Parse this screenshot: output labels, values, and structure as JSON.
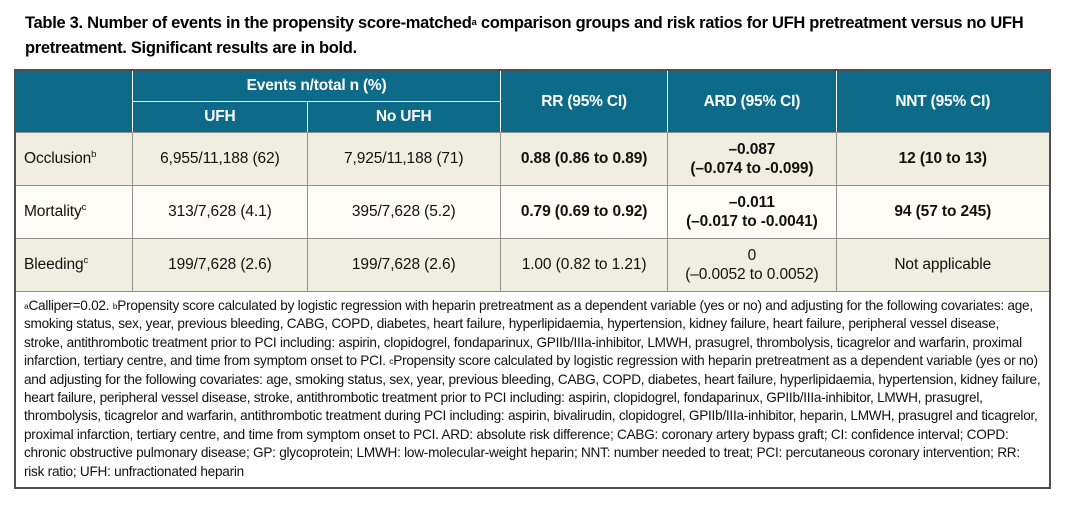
{
  "colors": {
    "header_bg": "#0e6a89",
    "header_text": "#ffffff",
    "row_beige": "#efeee0",
    "row_white": "#fdfcf6",
    "grid_line": "#8f8f8f",
    "outer_border": "#4f4f4f"
  },
  "title": {
    "part1": "Table 3. Number of events in the propensity score-matched",
    "sup": "a",
    "part2": " comparison groups and risk ratios for UFH pretreatment versus no UFH pretreatment. Significant results are in bold."
  },
  "table": {
    "header": {
      "events_group": "Events n/total n (%)",
      "ufh": "UFH",
      "no_ufh": "No UFH",
      "rr": "RR (95% CI)",
      "ard": "ARD (95% CI)",
      "nnt": "NNT (95% CI)"
    },
    "rows": [
      {
        "label": "Occlusion",
        "label_sup": "b",
        "ufh": "6,955/11,188 (62)",
        "no_ufh": "7,925/11,188 (71)",
        "rr": "0.88 (0.86 to 0.89)",
        "ard_line1": "–0.087",
        "ard_line2": "(–0.074 to -0.099)",
        "nnt": "12 (10 to 13)",
        "significant": true
      },
      {
        "label": "Mortality",
        "label_sup": "c",
        "ufh": "313/7,628 (4.1)",
        "no_ufh": "395/7,628 (5.2)",
        "rr": "0.79 (0.69 to 0.92)",
        "ard_line1": "–0.011",
        "ard_line2": "(–0.017 to -0.0041)",
        "nnt": "94 (57 to 245)",
        "significant": true
      },
      {
        "label": "Bleeding",
        "label_sup": "c",
        "ufh": "199/7,628 (2.6)",
        "no_ufh": "199/7,628 (2.6)",
        "rr": "1.00 (0.82 to 1.21)",
        "ard_line1": "0",
        "ard_line2": "(–0.0052 to 0.0052)",
        "nnt": "Not applicable",
        "significant": false
      }
    ]
  },
  "footnote": {
    "sup_a": "a",
    "part_a": "Calliper=0.02. ",
    "sup_b": "b",
    "part_b": "Propensity score calculated by logistic regression with heparin pretreatment as a dependent variable (yes or no) and adjusting for the following covariates: age, smoking status, sex, year, previous bleeding, CABG, COPD, diabetes, heart failure, hyperlipidaemia, hypertension, kidney failure, heart failure, peripheral vessel disease, stroke, antithrombotic treatment prior to PCI including: aspirin, clopidogrel, fondaparinux, GPIIb/IIIa-inhibitor, LMWH, prasugrel, thrombolysis, ticagrelor and warfarin, proximal infarction, tertiary centre, and time from symptom onset to PCI. ",
    "sup_c": "c",
    "part_c": "Propensity score calculated by logistic regression with heparin pretreatment as a dependent variable (yes or no) and adjusting for the following covariates: age, smoking status, sex, year, previous bleeding, CABG, COPD, diabetes, heart failure, hyperlipidaemia, hypertension, kidney failure, heart failure, peripheral vessel disease, stroke, antithrombotic treatment prior to PCI including: aspirin, clopidogrel, fondaparinux, GPIIb/IIIa-inhibitor, LMWH, prasugrel, thrombolysis, ticagrelor and warfarin, antithrombotic treatment during PCI including: aspirin, bivalirudin, clopidogrel, GPIIb/IIIa-inhibitor, heparin, LMWH, prasugrel and ticagrelor, proximal infarction, tertiary centre, and time from symptom onset to PCI. ARD: absolute risk difference; CABG: coronary artery bypass graft; CI: confidence interval; COPD: chronic obstructive pulmonary disease; GP: glycoprotein; LMWH: low-molecular-weight heparin; NNT: number needed to treat; PCI: percutaneous coronary intervention; RR: risk ratio; UFH: unfractionated heparin"
  }
}
